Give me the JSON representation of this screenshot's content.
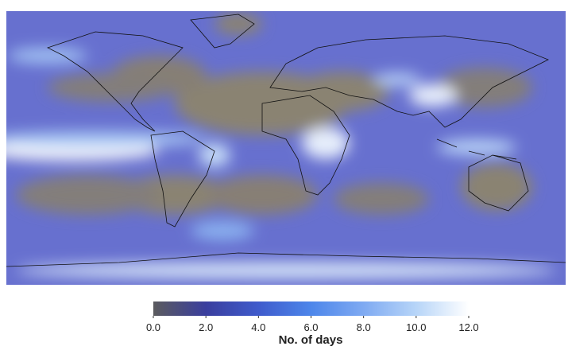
{
  "colorbar": {
    "label": "No. of days",
    "range": [
      0,
      12
    ],
    "ticks": [
      {
        "value": 0,
        "label": "0.0"
      },
      {
        "value": 2,
        "label": "2.0"
      },
      {
        "value": 4,
        "label": "4.0"
      },
      {
        "value": 6,
        "label": "6.0"
      },
      {
        "value": 8,
        "label": "8.0"
      },
      {
        "value": 10,
        "label": "10.0"
      },
      {
        "value": 12,
        "label": "12.0"
      }
    ],
    "colors": [
      "#5b5b5e",
      "#3a3e9e",
      "#3f5bcc",
      "#4d86ea",
      "#7faaf2",
      "#b7d5f8",
      "#ffffff"
    ]
  }
}
